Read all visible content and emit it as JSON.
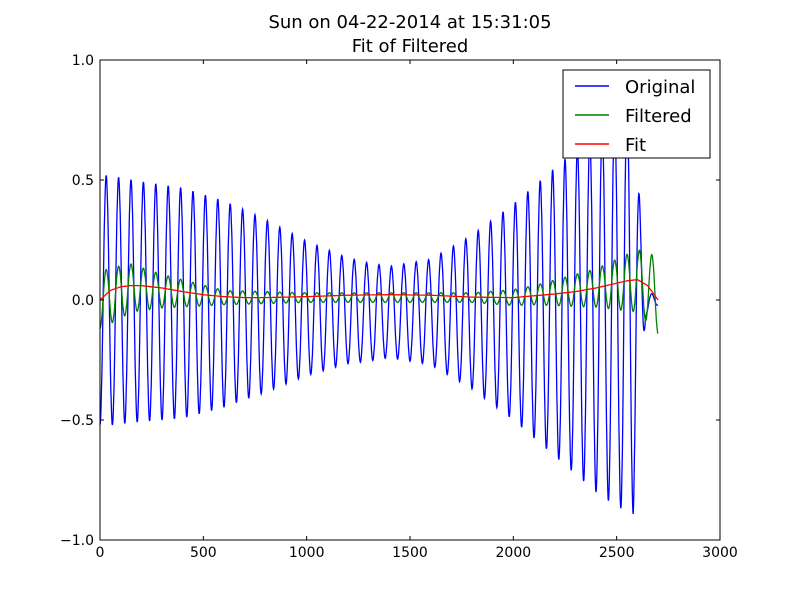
{
  "chart_data": {
    "type": "line",
    "title": "Sun on 04-22-2014 at 15:31:05",
    "subtitle": "Fit of Filtered",
    "xlabel": "",
    "ylabel": "",
    "xlim": [
      0,
      3000
    ],
    "ylim": [
      -1.0,
      1.0
    ],
    "x_ticks": [
      0,
      500,
      1000,
      1500,
      2000,
      2500,
      3000
    ],
    "y_ticks": [
      -1.0,
      -0.5,
      0.0,
      0.5,
      1.0
    ],
    "x_tick_labels": [
      "0",
      "500",
      "1000",
      "1500",
      "2000",
      "2500",
      "3000"
    ],
    "y_tick_labels": [
      "−1.0",
      "−0.5",
      "0.0",
      "0.5",
      "1.0"
    ],
    "grid": false,
    "legend_position": "top-right",
    "series": [
      {
        "name": "Original",
        "color": "#0000ff",
        "period": 60,
        "amplitude_envelope": {
          "x": [
            0,
            50,
            200,
            400,
            600,
            800,
            1000,
            1200,
            1400,
            1600,
            1800,
            2000,
            2200,
            2400,
            2500,
            2580,
            2640,
            2700
          ],
          "y": [
            0.52,
            0.52,
            0.5,
            0.48,
            0.43,
            0.36,
            0.28,
            0.22,
            0.19,
            0.22,
            0.32,
            0.45,
            0.6,
            0.75,
            0.82,
            0.86,
            0.05,
            0.02
          ]
        },
        "offset_envelope": {
          "x": [
            0,
            300,
            700,
            1300,
            2000,
            2400,
            2600,
            2700
          ],
          "y": [
            0.0,
            -0.01,
            -0.02,
            -0.05,
            -0.05,
            -0.05,
            -0.03,
            0.0
          ]
        }
      },
      {
        "name": "Filtered",
        "color": "#008000",
        "period": 60,
        "amplitude_envelope": {
          "x": [
            0,
            100,
            300,
            600,
            1000,
            1400,
            1800,
            2100,
            2400,
            2600,
            2700
          ],
          "y": [
            0.12,
            0.11,
            0.07,
            0.03,
            0.02,
            0.02,
            0.02,
            0.04,
            0.08,
            0.13,
            0.16
          ]
        },
        "offset_envelope": {
          "x": [
            0,
            150,
            600,
            1000,
            2000,
            2400,
            2600,
            2700
          ],
          "y": [
            0.0,
            0.05,
            0.01,
            0.01,
            0.01,
            0.05,
            0.08,
            0.02
          ]
        }
      },
      {
        "name": "Fit",
        "color": "#ff0000",
        "x": [
          0,
          50,
          100,
          150,
          200,
          300,
          400,
          500,
          600,
          700,
          800,
          1000,
          1200,
          1400,
          1600,
          1800,
          2000,
          2200,
          2300,
          2400,
          2500,
          2550,
          2600,
          2650,
          2700
        ],
        "y": [
          0.0,
          0.04,
          0.055,
          0.06,
          0.06,
          0.05,
          0.035,
          0.022,
          0.014,
          0.01,
          0.01,
          0.014,
          0.02,
          0.022,
          0.02,
          0.012,
          0.01,
          0.025,
          0.035,
          0.05,
          0.07,
          0.08,
          0.085,
          0.06,
          0.0
        ]
      }
    ]
  }
}
